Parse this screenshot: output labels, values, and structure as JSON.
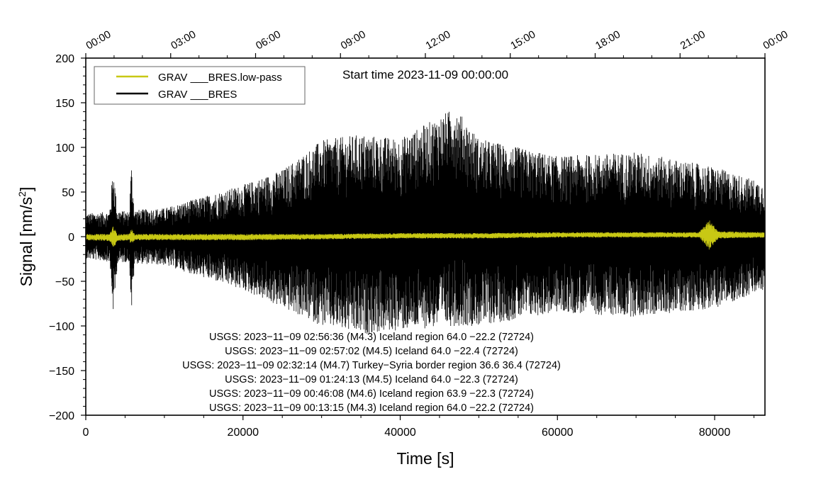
{
  "chart_data": {
    "type": "line",
    "xlabel": "Time [s]",
    "ylabel_main": "Signal [nm/s",
    "ylabel_sup": "2",
    "ylabel_close": "]",
    "xlim": [
      0,
      86400
    ],
    "ylim": [
      -200,
      200
    ],
    "x_ticks": [
      0,
      20000,
      40000,
      60000,
      80000
    ],
    "x_tick_labels": [
      "0",
      "20000",
      "40000",
      "60000",
      "80000"
    ],
    "y_ticks": [
      -200,
      -150,
      -100,
      -50,
      0,
      50,
      100,
      150,
      200
    ],
    "y_tick_labels": [
      "−200",
      "−150",
      "−100",
      "−50",
      "0",
      "50",
      "100",
      "150",
      "200"
    ],
    "top_axis_hours": [
      0,
      3,
      6,
      9,
      12,
      15,
      18,
      21,
      24
    ],
    "top_tick_labels": [
      "00:00",
      "03:00",
      "06:00",
      "09:00",
      "12:00",
      "15:00",
      "18:00",
      "21:00",
      "00:00"
    ],
    "start_time_label": "Start time 2023-11-09 00:00:00",
    "legend_position": "top-left",
    "series": [
      {
        "name": "GRAV ___BRES.low-pass",
        "color": "#c8c814",
        "envelope": {
          "x": [
            0,
            3000,
            3500,
            4000,
            5500,
            5800,
            6200,
            11000,
            20000,
            30000,
            40000,
            50000,
            60000,
            70000,
            78000,
            79300,
            80500,
            86400
          ],
          "min": [
            -4,
            -5,
            -13,
            -5,
            -4,
            -10,
            -4,
            -4,
            -4,
            -3,
            -2,
            -2,
            -1,
            -1,
            -1,
            -15,
            -2,
            -1
          ],
          "max": [
            3,
            3,
            12,
            3,
            3,
            9,
            3,
            3,
            3,
            3,
            4,
            4,
            5,
            5,
            5,
            19,
            6,
            5
          ]
        }
      },
      {
        "name": "GRAV ___BRES",
        "color": "#000000",
        "envelope": {
          "x": [
            0,
            3000,
            3500,
            4000,
            5500,
            5800,
            6200,
            10000,
            20000,
            25000,
            30000,
            35000,
            40000,
            47000,
            50000,
            60000,
            70000,
            80000,
            86400
          ],
          "max": [
            26,
            28,
            80,
            30,
            28,
            82,
            30,
            32,
            58,
            75,
            108,
            115,
            110,
            145,
            110,
            90,
            95,
            78,
            60
          ],
          "min": [
            -25,
            -28,
            -88,
            -30,
            -28,
            -85,
            -30,
            -32,
            -60,
            -80,
            -100,
            -110,
            -105,
            -100,
            -100,
            -85,
            -90,
            -80,
            -60
          ]
        }
      }
    ],
    "annotations": [
      "USGS: 2023−11−09 02:56:36 (M4.3) Iceland region 64.0 −22.2 (72724)",
      "USGS: 2023−11−09 02:57:02 (M4.5) Iceland 64.0 −22.4 (72724)",
      "USGS: 2023−11−09 02:32:14 (M4.7) Turkey−Syria border region 36.6 36.4 (72724)",
      "USGS: 2023−11−09 01:24:13 (M4.5) Iceland 64.0 −22.3 (72724)",
      "USGS: 2023−11−09 00:46:08 (M4.6) Iceland region 63.9 −22.3 (72724)",
      "USGS: 2023−11−09 00:13:15 (M4.3) Iceland region 64.0 −22.2 (72724)"
    ]
  }
}
